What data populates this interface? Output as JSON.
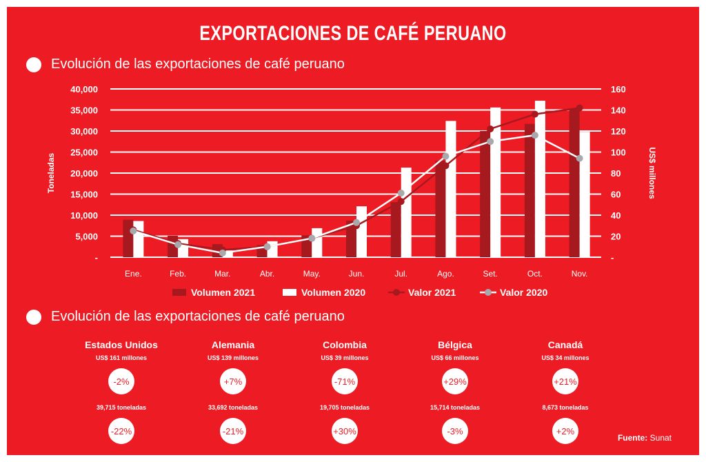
{
  "title": "EXPORTACIONES DE CAFÉ PERUANO",
  "section1": "Evolución de las exportaciones de café peruano",
  "section2": "Evolución de las exportaciones de café peruano",
  "colors": {
    "background": "#ED1C24",
    "vol2021": "#A6191E",
    "vol2020": "#FFFFFF",
    "val2021": "#A6191E",
    "val2020": "#A7A9AC"
  },
  "chart_data": {
    "type": "bar",
    "categories": [
      "Ene.",
      "Feb.",
      "Mar.",
      "Abr.",
      "May.",
      "Jun.",
      "Jul.",
      "Ago.",
      "Set.",
      "Oct.",
      "Nov."
    ],
    "ylabel": "Toneladas",
    "y2label": "US$ millones",
    "ylim": [
      0,
      40000
    ],
    "y2lim": [
      0,
      160
    ],
    "yticks": [
      "-",
      "5,000",
      "10,000",
      "15,000",
      "20,000",
      "25,000",
      "30,000",
      "35,000",
      "40,000"
    ],
    "y2ticks": [
      "-",
      "20",
      "40",
      "60",
      "80",
      "100",
      "120",
      "140",
      "160"
    ],
    "grid": true,
    "legend": "bottom",
    "series": [
      {
        "name": "Volumen 2021",
        "type": "bar",
        "axis": "left",
        "values": [
          8900,
          5100,
          3100,
          2900,
          5200,
          8700,
          13100,
          22900,
          30000,
          31700,
          35300
        ]
      },
      {
        "name": "Volumen 2020",
        "type": "bar",
        "axis": "left",
        "values": [
          8600,
          4300,
          1600,
          3800,
          6900,
          12100,
          21300,
          32400,
          35600,
          37200,
          29800
        ]
      },
      {
        "name": "Valor 2021",
        "type": "line",
        "axis": "right",
        "values": [
          26,
          13,
          7,
          10,
          18,
          30,
          53,
          87,
          122,
          136,
          142
        ]
      },
      {
        "name": "Valor 2020",
        "type": "line",
        "axis": "right",
        "values": [
          25,
          12,
          4,
          10,
          18,
          33,
          61,
          96,
          110,
          116,
          94
        ]
      }
    ]
  },
  "countries": [
    {
      "name": "Estados Unidos",
      "value": "US$ 161 millones",
      "value_change": "-2%",
      "tons": "39,715 toneladas",
      "tons_change": "-22%"
    },
    {
      "name": "Alemania",
      "value": "US$ 139 millones",
      "value_change": "+7%",
      "tons": "33,692 toneladas",
      "tons_change": "-21%"
    },
    {
      "name": "Colombia",
      "value": "US$ 39 millones",
      "value_change": "-71%",
      "tons": "19,705 toneladas",
      "tons_change": "+30%"
    },
    {
      "name": "Bélgica",
      "value": "US$ 66 millones",
      "value_change": "+29%",
      "tons": "15,714 toneladas",
      "tons_change": "-3%"
    },
    {
      "name": "Canadá",
      "value": "US$ 34 millones",
      "value_change": "+21%",
      "tons": "8,673 toneladas",
      "tons_change": "+2%"
    }
  ],
  "source": {
    "label": "Fuente:",
    "value": "Sunat"
  }
}
